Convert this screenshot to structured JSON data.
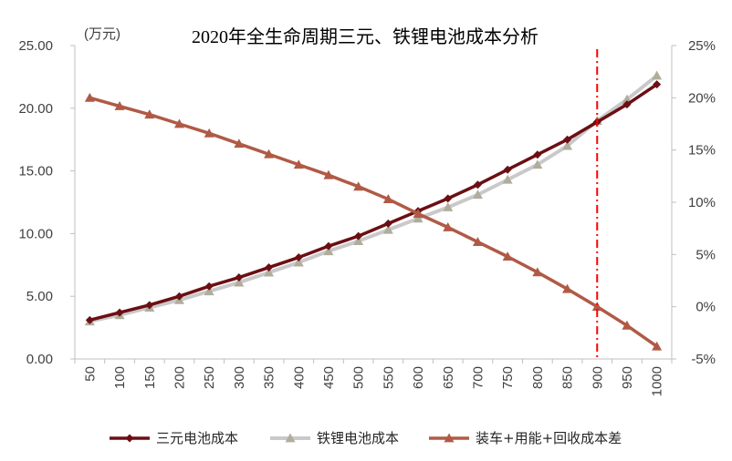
{
  "chart_data": {
    "type": "line",
    "title": "2020年全生命周期三元、铁锂电池成本分析",
    "ylabel_left": "(万元)",
    "x": [
      "50",
      "100",
      "150",
      "200",
      "250",
      "300",
      "350",
      "400",
      "450",
      "500",
      "550",
      "600",
      "650",
      "700",
      "750",
      "800",
      "850",
      "900",
      "950",
      "1000"
    ],
    "left_axis": {
      "min": 0,
      "max": 25,
      "step": 5,
      "tick_labels": [
        "0.00",
        "5.00",
        "10.00",
        "15.00",
        "20.00",
        "25.00"
      ]
    },
    "right_axis": {
      "min": -5,
      "max": 25,
      "step": 5,
      "tick_labels": [
        "-5%",
        "0%",
        "5%",
        "10%",
        "15%",
        "20%",
        "25%"
      ]
    },
    "series": [
      {
        "name": "三元电池成本",
        "axis": "left",
        "color": "#6b0f14",
        "marker": "diamond",
        "values": [
          3.1,
          3.7,
          4.3,
          5.0,
          5.8,
          6.5,
          7.3,
          8.1,
          9.0,
          9.8,
          10.8,
          11.8,
          12.8,
          13.9,
          15.1,
          16.3,
          17.5,
          18.9,
          20.3,
          21.9
        ]
      },
      {
        "name": "铁锂电池成本",
        "axis": "left",
        "color": "#c9c9c9",
        "marker": "triangle",
        "marker_color": "#b0ad9c",
        "values": [
          3.0,
          3.5,
          4.1,
          4.7,
          5.4,
          6.1,
          6.9,
          7.7,
          8.6,
          9.4,
          10.3,
          11.2,
          12.1,
          13.1,
          14.3,
          15.5,
          17.0,
          19.0,
          20.7,
          22.6
        ]
      },
      {
        "name": "装车+用能+回收成本差",
        "axis": "right",
        "color": "#b05a46",
        "marker": "triangle",
        "values": [
          20.0,
          19.2,
          18.4,
          17.5,
          16.6,
          15.6,
          14.6,
          13.6,
          12.6,
          11.5,
          10.3,
          8.9,
          7.6,
          6.2,
          4.8,
          3.3,
          1.7,
          0.0,
          -1.8,
          -3.8
        ]
      }
    ],
    "reference_line": {
      "x": "900",
      "color": "#ff0000",
      "style": "dash-dot"
    },
    "grid": false,
    "legend_position": "bottom"
  }
}
